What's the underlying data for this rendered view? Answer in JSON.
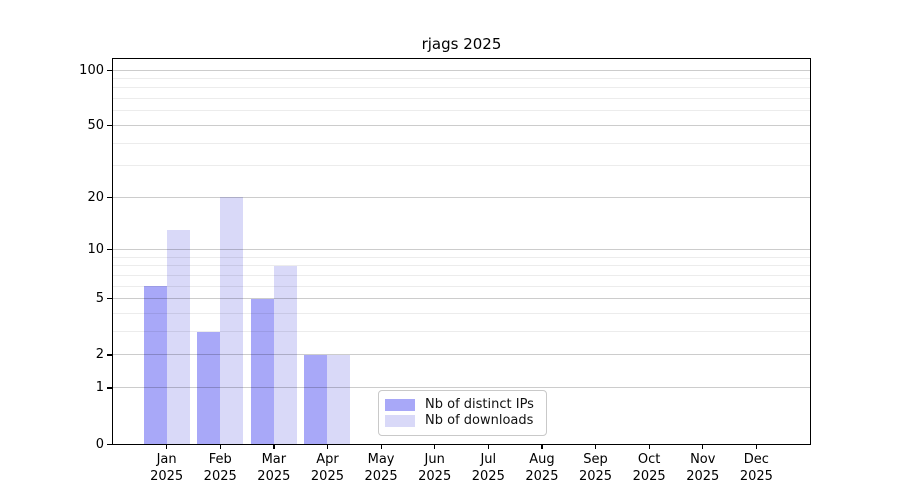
{
  "chart_data": {
    "type": "bar",
    "title": "rjags 2025",
    "categories": [
      "Jan",
      "Feb",
      "Mar",
      "Apr",
      "May",
      "Jun",
      "Jul",
      "Aug",
      "Sep",
      "Oct",
      "Nov",
      "Dec"
    ],
    "year_label": "2025",
    "series": [
      {
        "name": "Nb of distinct IPs",
        "color": "#a8a8f8",
        "values": [
          6,
          3,
          5,
          2,
          0,
          0,
          0,
          0,
          0,
          0,
          0,
          0
        ]
      },
      {
        "name": "Nb of downloads",
        "color": "#d9d9f8",
        "values": [
          13,
          20,
          8,
          2,
          0,
          0,
          0,
          0,
          0,
          0,
          0,
          0
        ]
      }
    ],
    "yscale": "log1p",
    "ylim": [
      0,
      115
    ],
    "yticks": [
      0,
      1,
      2,
      5,
      10,
      20,
      50,
      100
    ],
    "minor_gridlines": [
      3,
      4,
      6,
      7,
      8,
      9,
      30,
      40,
      60,
      70,
      80,
      90
    ],
    "grid": "horizontal",
    "legend_position": "inside-bottom-center",
    "colors": {
      "background": "#ffffff",
      "axis": "#000000",
      "major_grid": "rgba(0,0,0,0.20)",
      "minor_grid": "rgba(0,0,0,0.075)"
    }
  }
}
